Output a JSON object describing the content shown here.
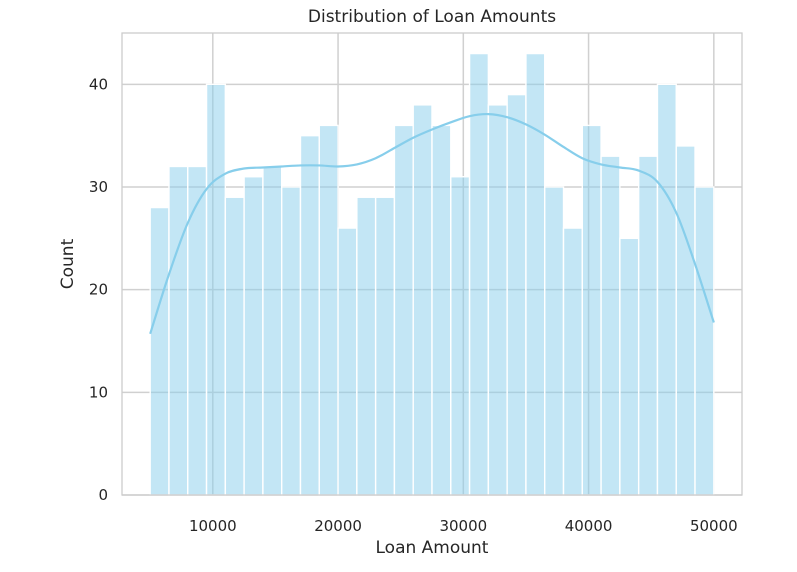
{
  "chart_data": {
    "type": "bar",
    "subtype": "histogram",
    "title": "Distribution of Loan Amounts",
    "xlabel": "Loan Amount",
    "ylabel": "Count",
    "xlim": [
      2750,
      52250
    ],
    "ylim": [
      0,
      45
    ],
    "xticks": [
      10000,
      20000,
      30000,
      40000,
      50000
    ],
    "yticks": [
      0,
      10,
      20,
      30,
      40
    ],
    "grid": true,
    "colors": {
      "bar_fill": "#87ceeb",
      "kde_line": "#87ceeb",
      "grid": "#d0d0d0",
      "frame": "#cccccc",
      "text": "#262626"
    },
    "bins": {
      "start": 5000,
      "end": 50000,
      "count": 30
    },
    "values": [
      28,
      32,
      32,
      40,
      29,
      31,
      32,
      30,
      35,
      36,
      26,
      29,
      29,
      36,
      38,
      36,
      31,
      43,
      38,
      39,
      43,
      30,
      26,
      36,
      33,
      25,
      33,
      40,
      34,
      30
    ],
    "kde": {
      "x": [
        5000,
        6500,
        8000,
        9500,
        11000,
        12500,
        14000,
        15500,
        17000,
        18500,
        20000,
        21500,
        23000,
        24500,
        26000,
        27500,
        29000,
        30500,
        32000,
        33500,
        35000,
        36500,
        38000,
        39500,
        41000,
        42500,
        44000,
        45500,
        47000,
        48500,
        50000
      ],
      "y": [
        15.7,
        21.5,
        26.5,
        29.8,
        31.3,
        31.8,
        31.9,
        32.0,
        32.1,
        32.1,
        32.0,
        32.2,
        32.8,
        33.8,
        34.8,
        35.6,
        36.3,
        36.9,
        37.1,
        36.8,
        36.1,
        35.1,
        33.9,
        32.8,
        32.2,
        31.9,
        31.6,
        30.5,
        27.5,
        22.5,
        16.8
      ]
    }
  }
}
